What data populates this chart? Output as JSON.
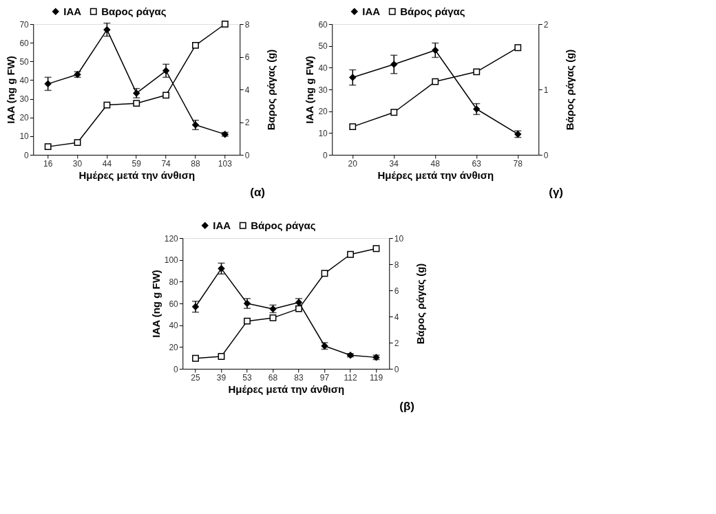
{
  "chart_data": [
    {
      "type": "line",
      "xlabel": "Ημέρες μετά την άνθιση",
      "ylabel": "IAA (ng g  FW)",
      "y2label": "Βαρος ράγας (g)",
      "categories": [
        "16",
        "30",
        "44",
        "59",
        "74",
        "88",
        "103"
      ],
      "ylim": [
        0,
        70
      ],
      "yticks": [
        0,
        10,
        20,
        30,
        40,
        50,
        60,
        70
      ],
      "y2lim": [
        0,
        8
      ],
      "y2ticks": [
        0,
        2,
        4,
        6,
        8
      ],
      "legend": "top",
      "grid": false,
      "annotations": [
        "(α)"
      ],
      "series": [
        {
          "name": "IAA",
          "color": "#000000",
          "marker": "diamond",
          "values": [
            38,
            43,
            67,
            33,
            45,
            16,
            11
          ],
          "errors": [
            3.5,
            1.5,
            3.5,
            2.5,
            3.5,
            2.5,
            1
          ]
        },
        {
          "name": "Βαρος ράγας",
          "color": "#000000",
          "marker": "square",
          "axis": "y2",
          "values": [
            0.5,
            0.75,
            3.05,
            3.15,
            3.65,
            6.7,
            8.0
          ]
        }
      ]
    },
    {
      "type": "line",
      "xlabel": "Ημέρες μετά την άνθιση",
      "ylabel": "IAA (ng g  FW)",
      "y2label": "Βάρος ράγας (g)",
      "categories": [
        "20",
        "34",
        "48",
        "63",
        "78"
      ],
      "ylim": [
        0,
        60
      ],
      "yticks": [
        0,
        10,
        20,
        30,
        40,
        50,
        60
      ],
      "y2lim": [
        0,
        2
      ],
      "y2ticks": [
        0,
        1,
        2
      ],
      "legend": "top",
      "grid": false,
      "annotations": [
        "(γ)"
      ],
      "series": [
        {
          "name": "IAA",
          "color": "#000000",
          "marker": "diamond",
          "values": [
            35.5,
            41.5,
            48,
            21,
            9.5
          ],
          "errors": [
            3.5,
            4.2,
            3.3,
            2.5,
            1.5
          ]
        },
        {
          "name": "Βάρος ράγας",
          "color": "#000000",
          "marker": "square",
          "axis": "y2",
          "values": [
            0.43,
            0.65,
            1.12,
            1.27,
            1.64
          ]
        }
      ]
    },
    {
      "type": "line",
      "xlabel": "Ημέρες μετά την άνθιση",
      "ylabel": "IAA (ng g  FW)",
      "y2label": "Βάρος ράγας (g)",
      "categories": [
        "25",
        "39",
        "53",
        "68",
        "83",
        "97",
        "112",
        "119"
      ],
      "ylim": [
        0,
        120
      ],
      "yticks": [
        0,
        20,
        40,
        60,
        80,
        100,
        120
      ],
      "y2lim": [
        0,
        10
      ],
      "y2ticks": [
        0,
        2,
        4,
        6,
        8,
        10
      ],
      "legend": "top",
      "grid": false,
      "annotations": [
        "(β)"
      ],
      "series": [
        {
          "name": "IAA",
          "color": "#000000",
          "marker": "diamond",
          "values": [
            57,
            92,
            60,
            55,
            61,
            21,
            12.5,
            10.5
          ],
          "errors": [
            5,
            5,
            4.5,
            3.5,
            3.5,
            3,
            1.5,
            2
          ]
        },
        {
          "name": "Βάρος ράγας",
          "color": "#000000",
          "marker": "square",
          "axis": "y2",
          "values": [
            0.8,
            0.95,
            3.65,
            3.9,
            4.6,
            7.3,
            8.75,
            9.2
          ]
        }
      ]
    }
  ]
}
